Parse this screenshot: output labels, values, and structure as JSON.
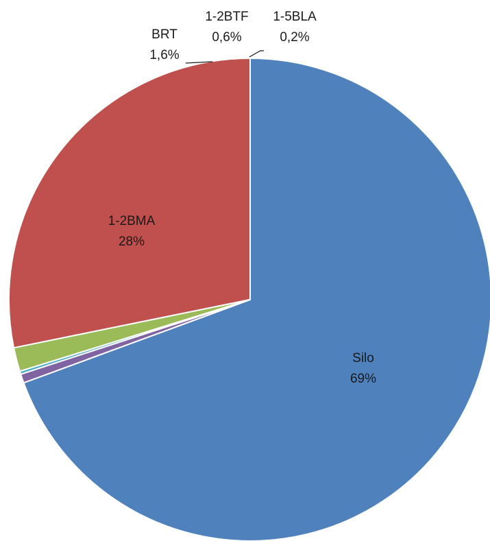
{
  "chart_data": {
    "type": "pie",
    "title": "",
    "legend": "none",
    "slices": [
      {
        "label": "Silo",
        "value": 69.4,
        "display": "69%",
        "color": "#4f81bd"
      },
      {
        "label": "1-2BTF",
        "value": 0.6,
        "display": "0,6%",
        "color": "#8064a2"
      },
      {
        "label": "1-5BLA",
        "value": 0.2,
        "display": "0,2%",
        "color": "#4bacc6"
      },
      {
        "label": "BRT",
        "value": 1.6,
        "display": "1,6%",
        "color": "#9bbb59"
      },
      {
        "label": "1-2BMA",
        "value": 28.2,
        "display": "28%",
        "color": "#c0504d"
      }
    ],
    "draw_order": [
      "Silo",
      "1-2BMA",
      "BRT",
      "1-2BTF",
      "1-5BLA"
    ]
  }
}
